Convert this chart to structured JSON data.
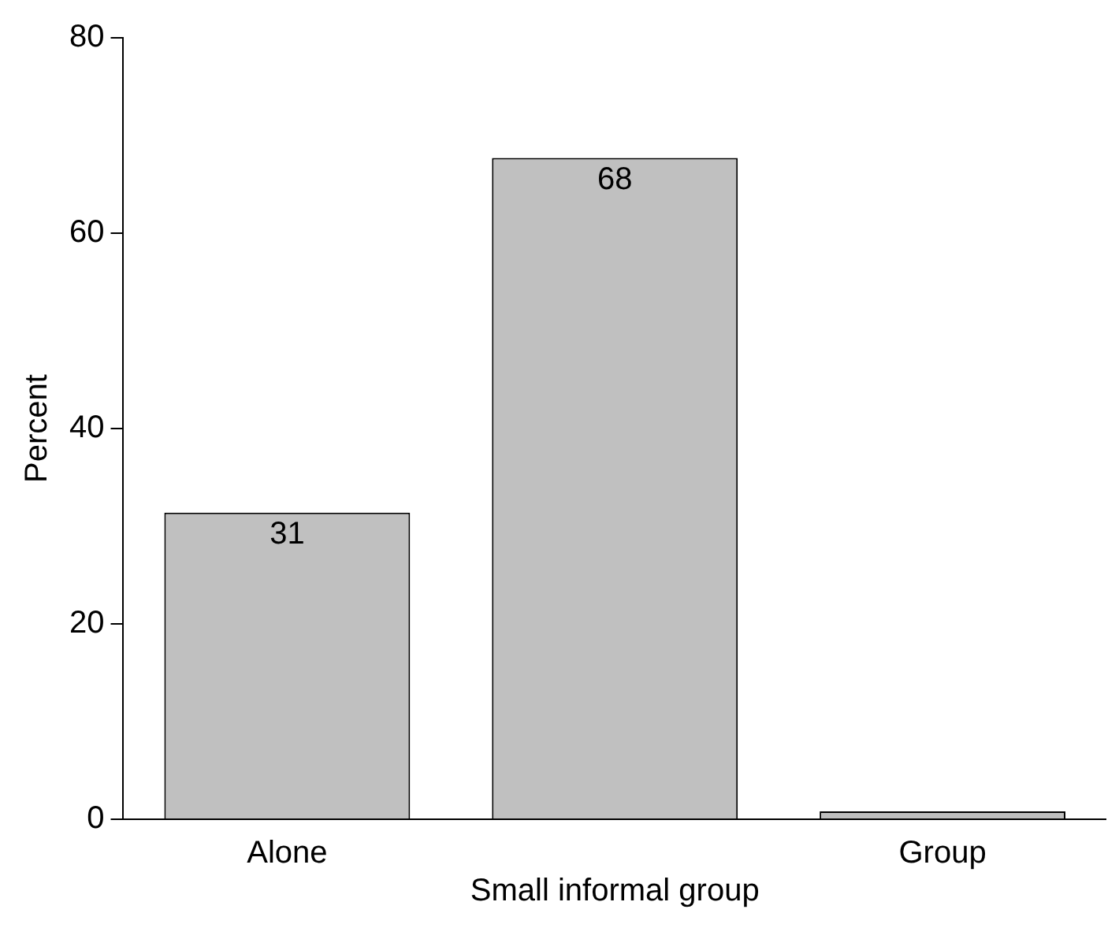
{
  "chart_data": {
    "type": "bar",
    "ylabel": "Percent",
    "categories": [
      "Alone",
      "Small informal group",
      "Group"
    ],
    "values": [
      31.4,
      67.7,
      0.8
    ],
    "value_labels": [
      "31",
      "68",
      null
    ],
    "color": "#c0c0c0",
    "ylim": [
      0,
      80
    ],
    "yticks": [
      0,
      20,
      40,
      60,
      80
    ],
    "grid": false,
    "legend": false
  }
}
